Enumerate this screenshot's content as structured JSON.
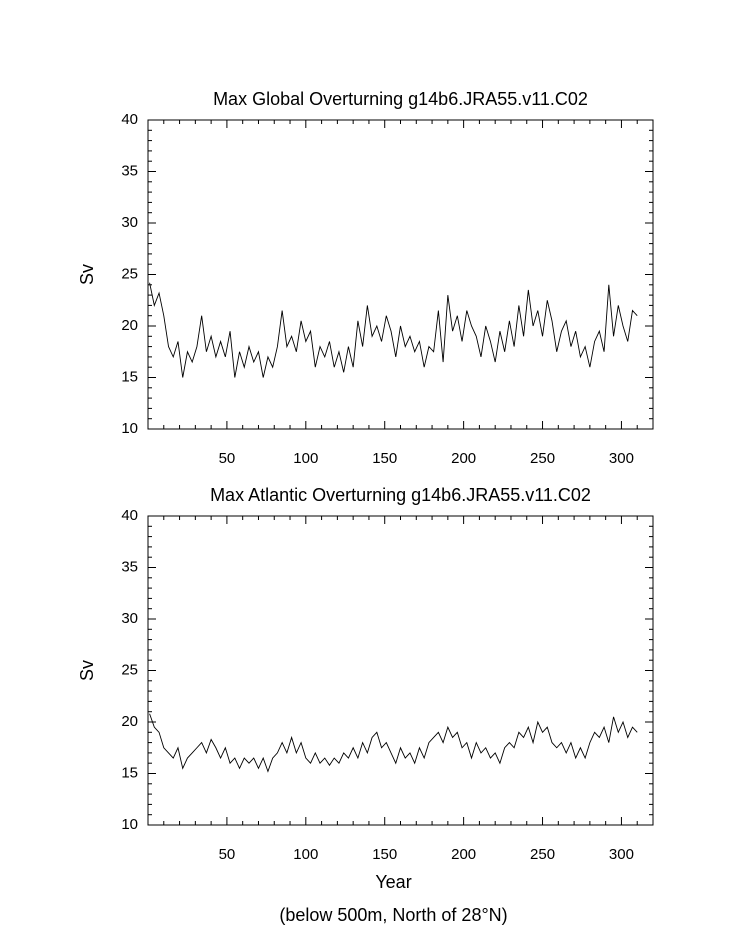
{
  "chart_data": [
    {
      "type": "line",
      "title": "Max Global Overturning g14b6.JRA55.v11.C02",
      "ylabel": "Sv",
      "color": "#000000",
      "xlim": [
        0,
        320
      ],
      "ylim": [
        10,
        40
      ],
      "xticks": [
        50,
        100,
        150,
        200,
        250,
        300
      ],
      "yticks": [
        10,
        15,
        20,
        25,
        30,
        35,
        40
      ],
      "x": [
        1,
        4,
        7,
        10,
        13,
        16,
        19,
        22,
        25,
        28,
        31,
        34,
        37,
        40,
        43,
        46,
        49,
        52,
        55,
        58,
        61,
        64,
        67,
        70,
        73,
        76,
        79,
        82,
        85,
        88,
        91,
        94,
        97,
        100,
        103,
        106,
        109,
        112,
        115,
        118,
        121,
        124,
        127,
        130,
        133,
        136,
        139,
        142,
        145,
        148,
        151,
        154,
        157,
        160,
        163,
        166,
        169,
        172,
        175,
        178,
        181,
        184,
        187,
        190,
        193,
        196,
        199,
        202,
        205,
        208,
        211,
        214,
        217,
        220,
        223,
        226,
        229,
        232,
        235,
        238,
        241,
        244,
        247,
        250,
        253,
        256,
        259,
        262,
        265,
        268,
        271,
        274,
        277,
        280,
        283,
        286,
        289,
        292,
        295,
        298,
        301,
        304,
        307,
        310
      ],
      "values": [
        24.2,
        22.0,
        23.2,
        21.0,
        18.0,
        17.0,
        18.5,
        15.0,
        17.5,
        16.5,
        18.0,
        21.0,
        17.5,
        19.0,
        17.0,
        18.5,
        17.0,
        19.5,
        15.0,
        17.5,
        16.0,
        18.0,
        16.5,
        17.5,
        15.0,
        17.0,
        16.0,
        18.0,
        21.5,
        18.0,
        19.0,
        17.5,
        20.5,
        18.5,
        19.5,
        16.0,
        18.0,
        17.0,
        18.5,
        16.0,
        17.5,
        15.5,
        18.0,
        16.0,
        20.5,
        18.0,
        22.0,
        19.0,
        20.0,
        18.5,
        21.0,
        19.5,
        17.0,
        20.0,
        18.0,
        19.0,
        17.5,
        18.5,
        16.0,
        18.0,
        17.5,
        21.5,
        16.5,
        23.0,
        19.5,
        21.0,
        18.5,
        21.5,
        20.0,
        19.0,
        17.0,
        20.0,
        18.5,
        16.5,
        19.5,
        17.5,
        20.5,
        18.0,
        22.0,
        19.0,
        23.5,
        20.0,
        21.5,
        19.0,
        22.5,
        20.5,
        17.5,
        19.5,
        20.5,
        18.0,
        19.5,
        17.0,
        18.0,
        16.0,
        18.5,
        19.5,
        17.5,
        24.0,
        19.0,
        22.0,
        20.0,
        18.5,
        21.5,
        21.0
      ]
    },
    {
      "type": "line",
      "title": "Max Atlantic Overturning g14b6.JRA55.v11.C02",
      "ylabel": "Sv",
      "xlabel": "Year",
      "note": "(below 500m, North of 28°N)",
      "color": "#000000",
      "xlim": [
        0,
        320
      ],
      "ylim": [
        10,
        40
      ],
      "xticks": [
        50,
        100,
        150,
        200,
        250,
        300
      ],
      "yticks": [
        10,
        15,
        20,
        25,
        30,
        35,
        40
      ],
      "x": [
        1,
        4,
        7,
        10,
        13,
        16,
        19,
        22,
        25,
        28,
        31,
        34,
        37,
        40,
        43,
        46,
        49,
        52,
        55,
        58,
        61,
        64,
        67,
        70,
        73,
        76,
        79,
        82,
        85,
        88,
        91,
        94,
        97,
        100,
        103,
        106,
        109,
        112,
        115,
        118,
        121,
        124,
        127,
        130,
        133,
        136,
        139,
        142,
        145,
        148,
        151,
        154,
        157,
        160,
        163,
        166,
        169,
        172,
        175,
        178,
        181,
        184,
        187,
        190,
        193,
        196,
        199,
        202,
        205,
        208,
        211,
        214,
        217,
        220,
        223,
        226,
        229,
        232,
        235,
        238,
        241,
        244,
        247,
        250,
        253,
        256,
        259,
        262,
        265,
        268,
        271,
        274,
        277,
        280,
        283,
        286,
        289,
        292,
        295,
        298,
        301,
        304,
        307,
        310
      ],
      "values": [
        20.8,
        19.5,
        19.0,
        17.5,
        17.0,
        16.5,
        17.5,
        15.5,
        16.5,
        17.0,
        17.5,
        18.0,
        17.0,
        18.3,
        17.5,
        16.5,
        17.5,
        16.0,
        16.5,
        15.5,
        16.5,
        16.0,
        16.5,
        15.5,
        16.5,
        15.2,
        16.5,
        17.0,
        18.0,
        17.0,
        18.5,
        17.0,
        18.0,
        16.5,
        16.0,
        17.0,
        16.0,
        16.5,
        15.8,
        16.5,
        16.0,
        17.0,
        16.5,
        17.5,
        16.5,
        18.0,
        17.0,
        18.5,
        19.0,
        17.5,
        18.0,
        17.0,
        16.0,
        17.5,
        16.5,
        17.0,
        16.0,
        17.5,
        16.5,
        18.0,
        18.5,
        19.0,
        18.0,
        19.5,
        18.5,
        19.0,
        17.5,
        18.0,
        16.5,
        18.0,
        17.0,
        17.5,
        16.5,
        17.0,
        16.0,
        17.5,
        18.0,
        17.5,
        19.0,
        18.5,
        19.5,
        18.0,
        20.0,
        19.0,
        19.5,
        18.0,
        17.5,
        18.0,
        17.0,
        18.0,
        16.5,
        17.5,
        16.5,
        18.0,
        19.0,
        18.5,
        19.5,
        18.0,
        20.5,
        19.0,
        20.0,
        18.5,
        19.5,
        19.0
      ]
    }
  ]
}
